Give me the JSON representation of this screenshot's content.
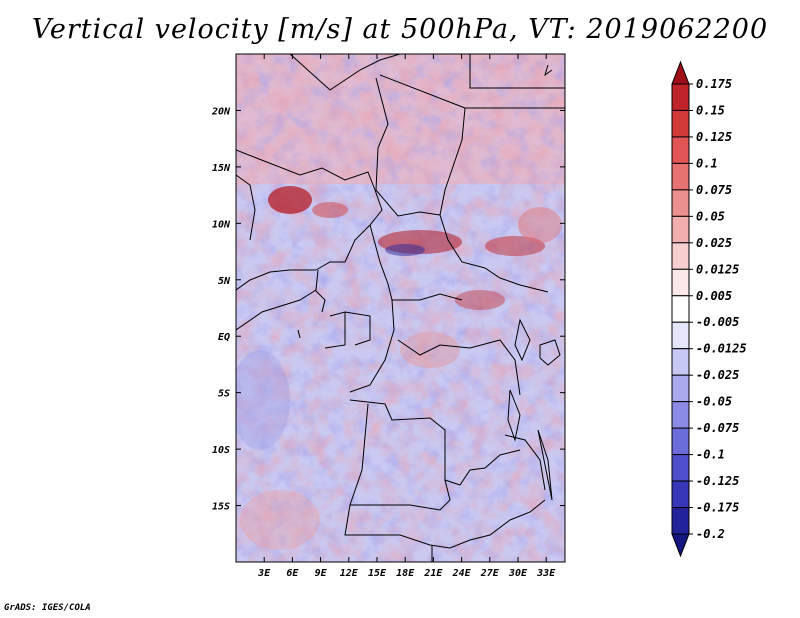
{
  "title": "Vertical velocity [m/s] at 500hPa, VT: 2019062200",
  "footer": "GrADS: IGES/COLA",
  "map": {
    "lon_range": [
      0,
      35
    ],
    "lat_range": [
      -20,
      25
    ],
    "lon_ticks": [
      "3E",
      "6E",
      "9E",
      "12E",
      "15E",
      "18E",
      "21E",
      "24E",
      "27E",
      "30E",
      "33E"
    ],
    "lat_ticks": [
      "20N",
      "15N",
      "10N",
      "5N",
      "EQ",
      "5S",
      "10S",
      "15S"
    ]
  },
  "colorbar": {
    "labels": [
      "0.175",
      "0.15",
      "0.125",
      "0.1",
      "0.075",
      "0.05",
      "0.025",
      "0.0125",
      "0.005",
      "-0.005",
      "-0.0125",
      "-0.025",
      "-0.05",
      "-0.075",
      "-0.1",
      "-0.125",
      "-0.175",
      "-0.2"
    ],
    "colors": [
      "#a01018",
      "#be2428",
      "#d23a3a",
      "#e05454",
      "#e67272",
      "#ec8f8f",
      "#f2aeae",
      "#f7cfcf",
      "#fbe9e9",
      "#ffffff",
      "#e6e6fb",
      "#c8c8f5",
      "#a9a9ee",
      "#8b8be6",
      "#6c6cda",
      "#4f4fcc",
      "#3636b6",
      "#22229a",
      "#151580"
    ]
  }
}
